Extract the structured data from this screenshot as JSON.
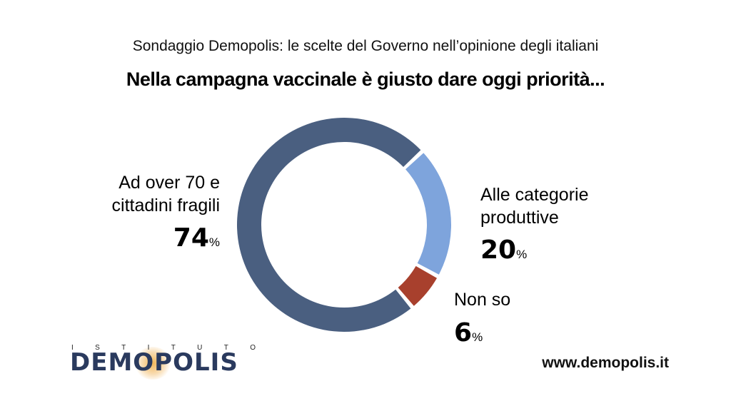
{
  "header": {
    "subtitle_brand": "Sondaggio",
    "subtitle_rest": " Demopolis: le scelte del Governo nell’opinione degli italiani",
    "title": "Nella campagna vaccinale è giusto dare oggi priorità..."
  },
  "chart_data": {
    "type": "pie",
    "variant": "donut",
    "title": "Nella campagna vaccinale è giusto dare oggi priorità...",
    "slices": [
      {
        "label_lines": [
          "Ad over 70 e",
          "cittadini fragili"
        ],
        "value": 74,
        "value_text": "74",
        "color": "#4a5f80"
      },
      {
        "label_lines": [
          "Alle categorie",
          "produttive"
        ],
        "value": 20,
        "value_text": "20",
        "color": "#7ea4dc"
      },
      {
        "label_lines": [
          "Non so"
        ],
        "value": 6,
        "value_text": "6",
        "color": "#a8402d"
      }
    ],
    "unit": "%"
  },
  "footer": {
    "logo_small": [
      "I",
      "S",
      "T",
      "I",
      "T",
      "U",
      "T",
      "O"
    ],
    "logo_main": "DEMOPOLIS",
    "website": "www.demopolis.it"
  }
}
